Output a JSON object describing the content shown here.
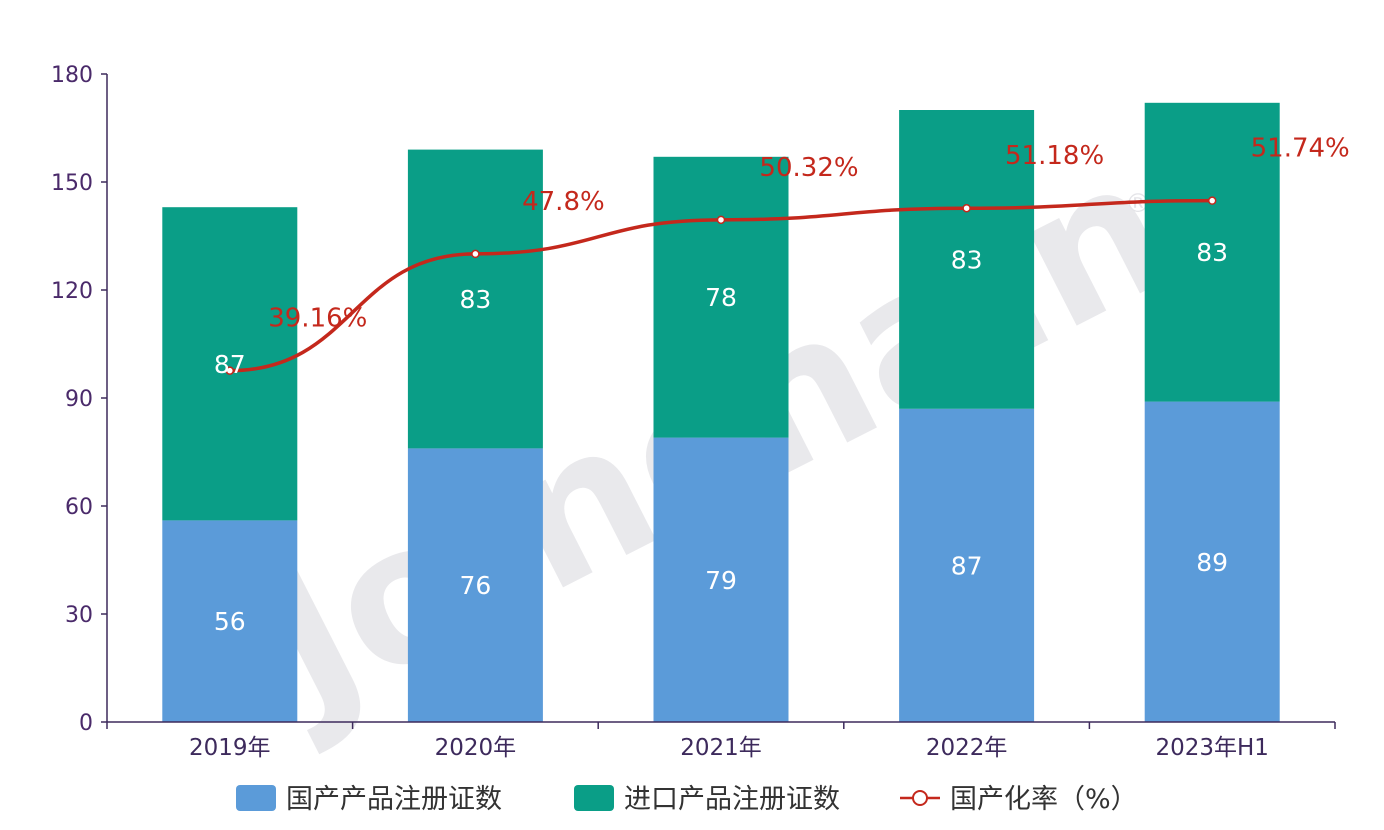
{
  "watermark": "Joinchain",
  "chart_data": {
    "type": "bar",
    "stacked": true,
    "categories": [
      "2019年",
      "2020年",
      "2021年",
      "2022年",
      "2023年H1"
    ],
    "series": [
      {
        "name": "国产产品注册证数",
        "kind": "bar",
        "color": "#5b9bd9",
        "values": [
          56,
          76,
          79,
          87,
          89
        ]
      },
      {
        "name": "进口产品注册证数",
        "kind": "bar",
        "color": "#0a9e87",
        "values": [
          87,
          83,
          78,
          83,
          83
        ]
      },
      {
        "name": "国产化率（%）",
        "kind": "line",
        "color": "#c4281c",
        "values": [
          39.16,
          47.8,
          50.32,
          51.18,
          51.74
        ],
        "labels": [
          "39.16%",
          "47.8%",
          "50.32%",
          "51.18%",
          "51.74%"
        ]
      }
    ],
    "ylim": [
      0,
      180
    ],
    "yticks": [
      0,
      30,
      60,
      90,
      120,
      150,
      180
    ],
    "grid": false,
    "legend_position": "bottom",
    "xlabel": "",
    "ylabel": ""
  }
}
